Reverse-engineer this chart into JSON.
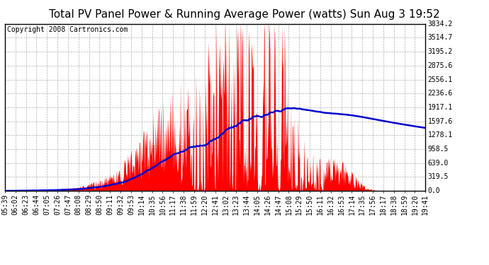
{
  "title": "Total PV Panel Power & Running Average Power (watts) Sun Aug 3 19:52",
  "copyright": "Copyright 2008 Cartronics.com",
  "y_tick_labels": [
    "0.0",
    "319.5",
    "639.0",
    "958.5",
    "1278.1",
    "1597.6",
    "1917.1",
    "2236.6",
    "2556.1",
    "2875.6",
    "3195.2",
    "3514.7",
    "3834.2"
  ],
  "y_tick_values": [
    0.0,
    319.5,
    639.0,
    958.5,
    1278.1,
    1597.6,
    1917.1,
    2236.6,
    2556.1,
    2875.6,
    3195.2,
    3514.7,
    3834.2
  ],
  "ymax": 3834.2,
  "ymin": 0.0,
  "x_tick_labels": [
    "05:39",
    "06:02",
    "06:23",
    "06:44",
    "07:05",
    "07:26",
    "07:47",
    "08:08",
    "08:29",
    "08:50",
    "09:11",
    "09:32",
    "09:53",
    "10:14",
    "10:35",
    "10:56",
    "11:17",
    "11:38",
    "11:59",
    "12:20",
    "12:41",
    "13:02",
    "13:23",
    "13:44",
    "14:05",
    "14:26",
    "14:47",
    "15:08",
    "15:29",
    "15:50",
    "16:11",
    "16:32",
    "16:53",
    "17:14",
    "17:35",
    "17:56",
    "18:17",
    "18:38",
    "18:59",
    "19:20",
    "19:41"
  ],
  "background_color": "#ffffff",
  "plot_bg_color": "#ffffff",
  "grid_color": "#b0b0b0",
  "fill_color": "#ff0000",
  "line_color": "#0000cc",
  "title_fontsize": 11,
  "copyright_fontsize": 7,
  "tick_fontsize": 7,
  "border_color": "#000000"
}
